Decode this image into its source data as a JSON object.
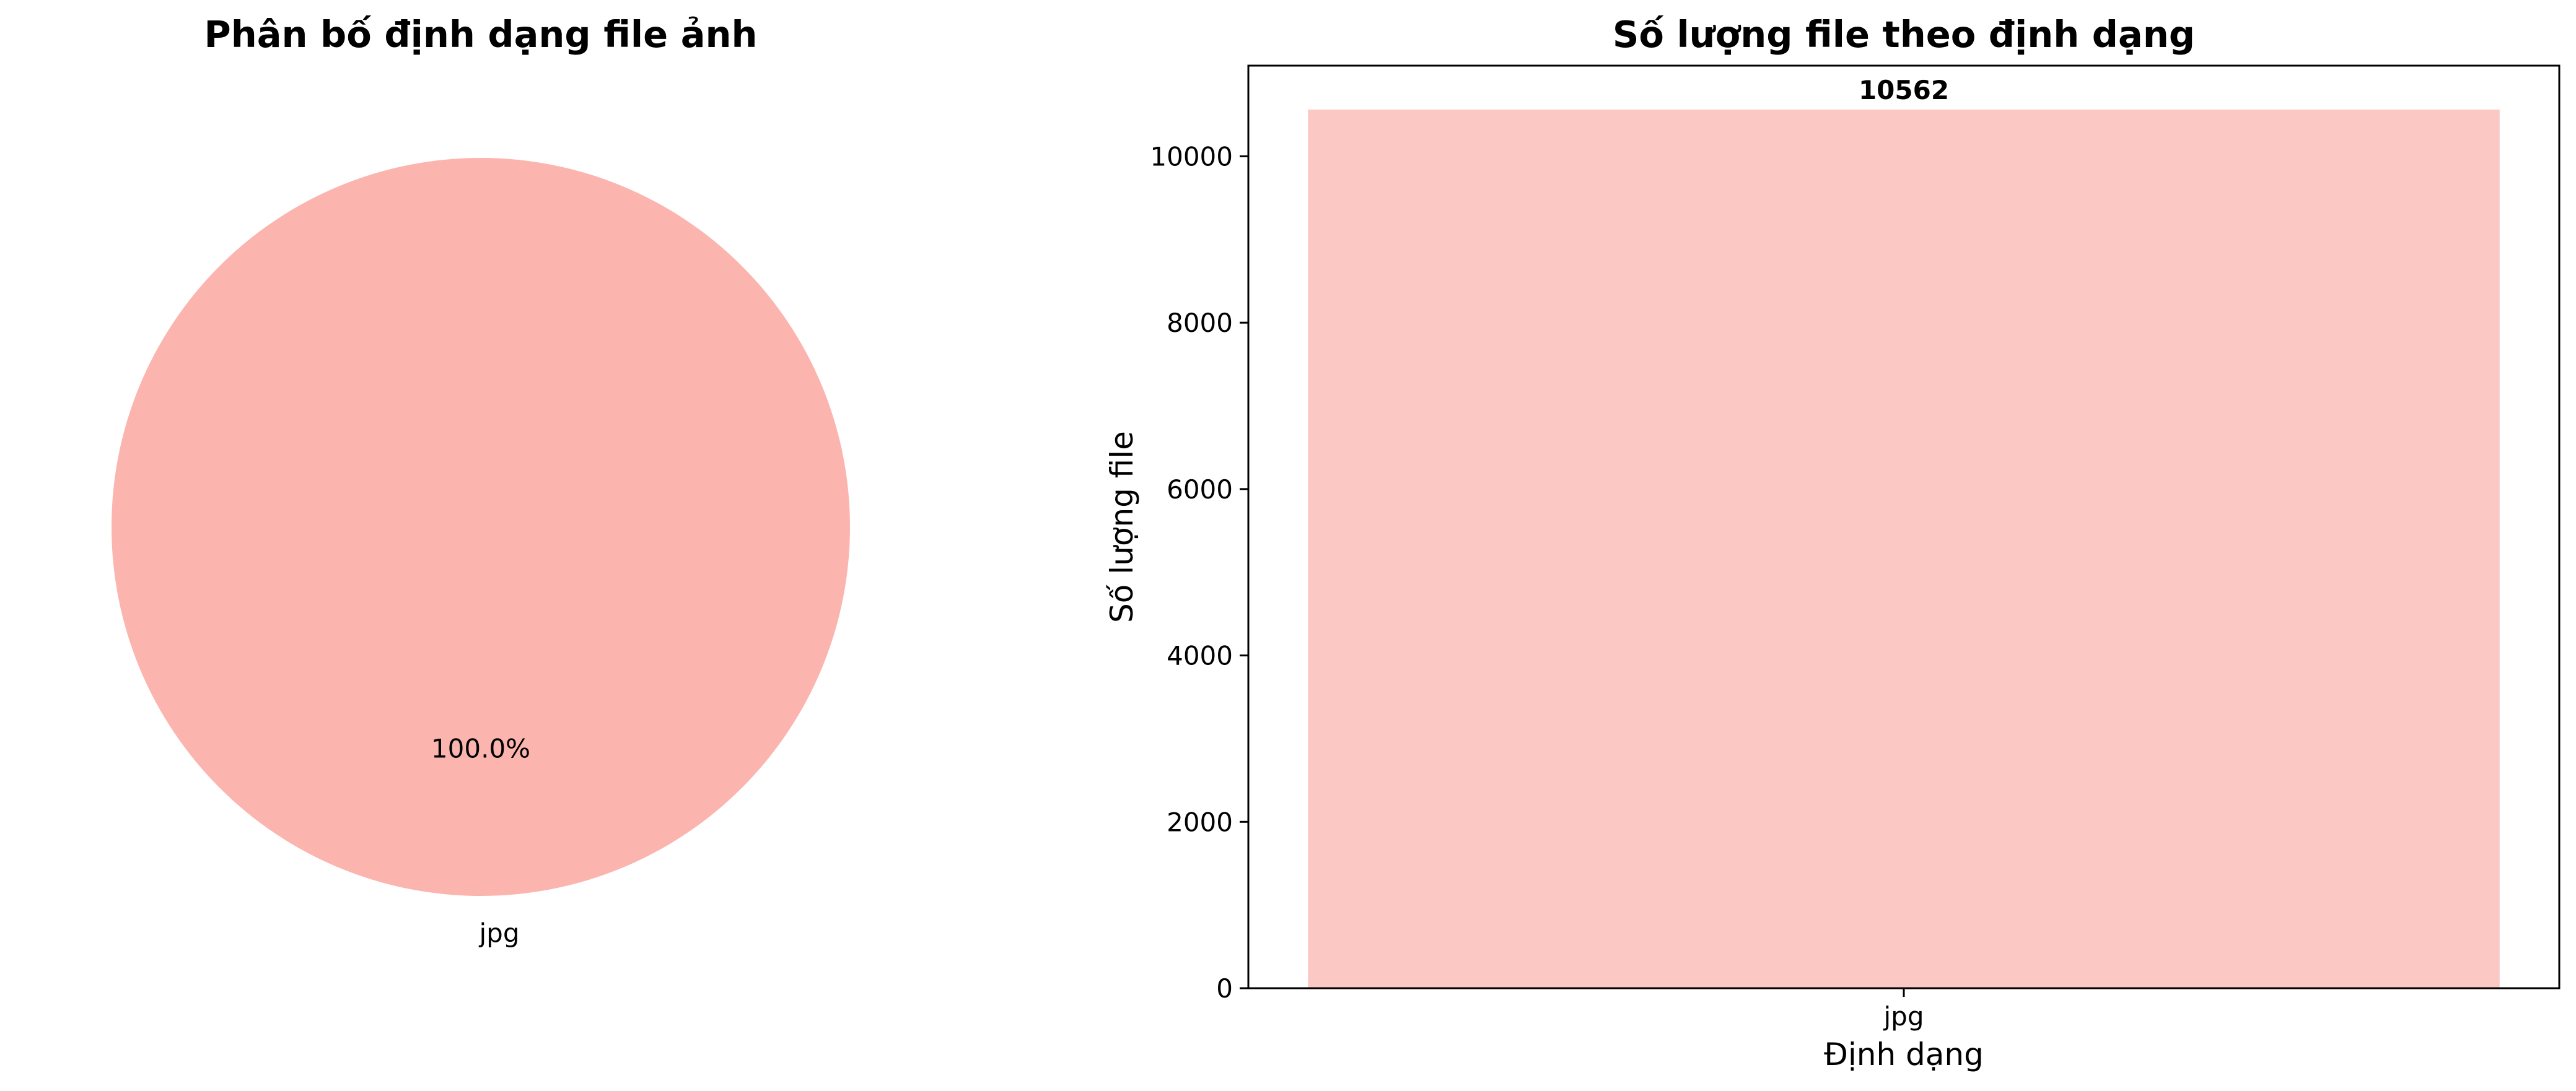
{
  "chart_data": [
    {
      "type": "pie",
      "title": "Phân bố định dạng file ảnh",
      "labels": [
        "jpg"
      ],
      "values": [
        10562
      ],
      "percent_labels": [
        "100.0%"
      ],
      "colors": [
        "#fbb4ae"
      ]
    },
    {
      "type": "bar",
      "title": "Số lượng file theo định dạng",
      "categories": [
        "jpg"
      ],
      "values": [
        10562
      ],
      "value_labels": [
        "10562"
      ],
      "xlabel": "Định dạng",
      "ylabel": "Số lượng file",
      "ylim": [
        0,
        11090
      ],
      "yticks": [
        0,
        2000,
        4000,
        6000,
        8000,
        10000
      ],
      "ytick_labels": [
        "0",
        "2000",
        "4000",
        "6000",
        "8000",
        "10000"
      ],
      "colors": [
        "#fbc8c4"
      ],
      "grid": false
    }
  ]
}
